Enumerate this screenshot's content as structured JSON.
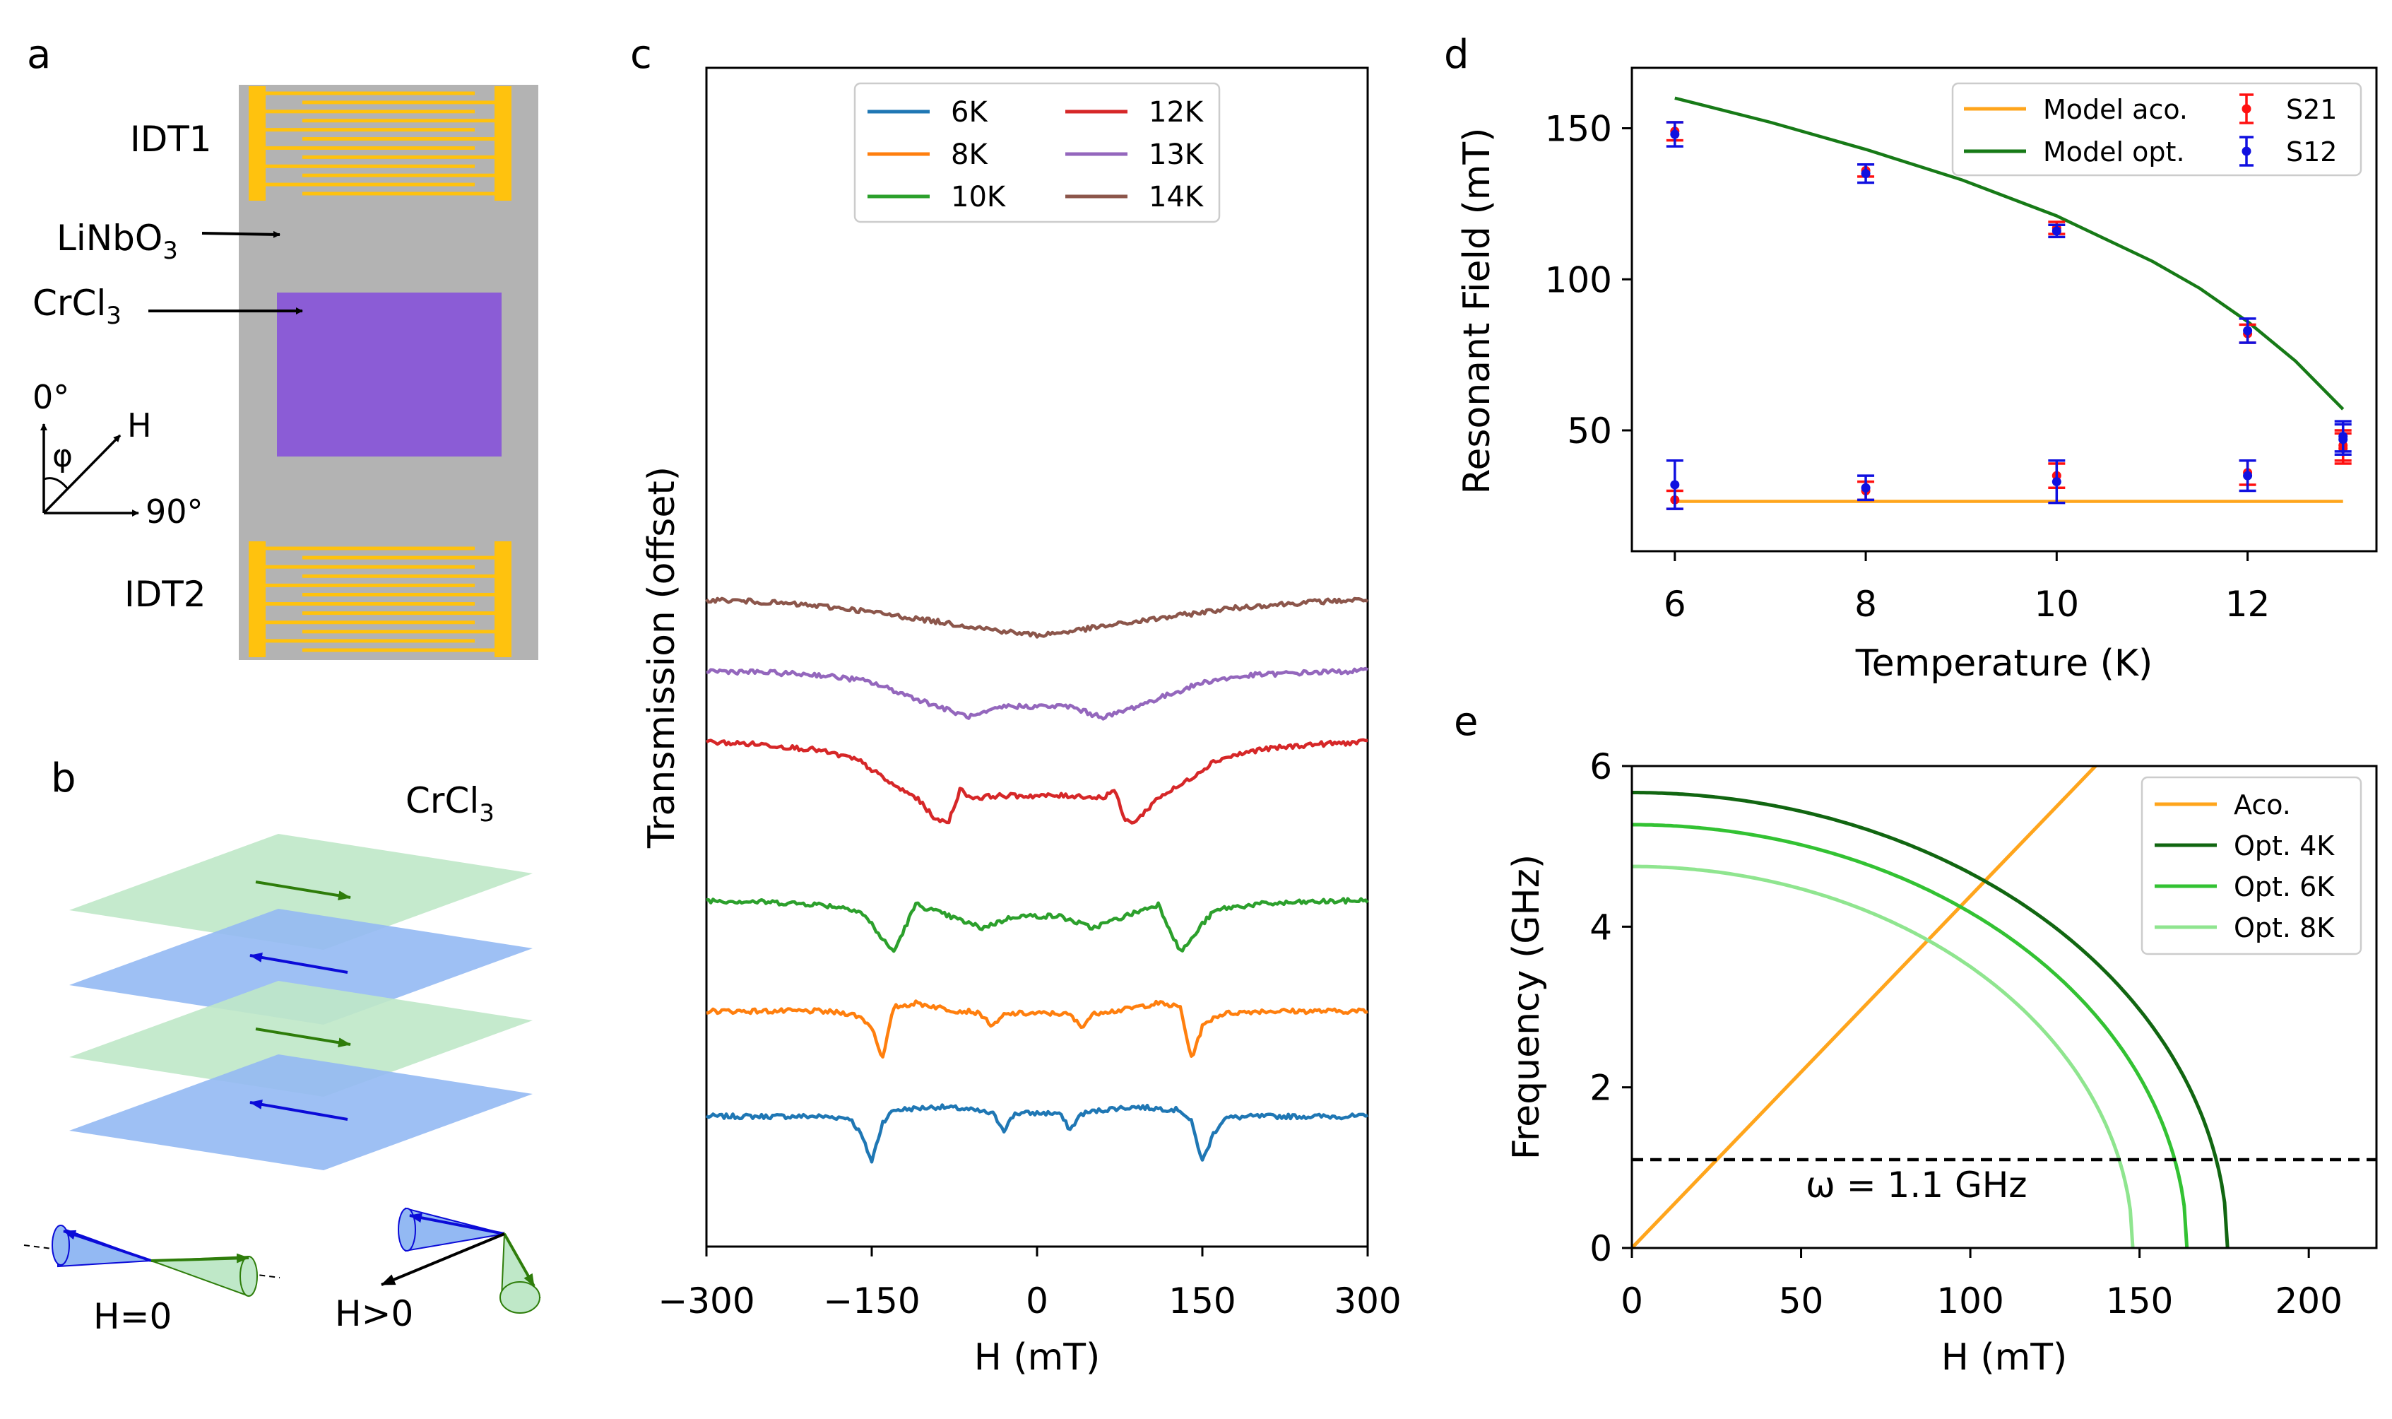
{
  "panel_labels": {
    "a": "a",
    "b": "b",
    "c": "c",
    "d": "d",
    "e": "e"
  },
  "panel_a": {
    "idt1": "IDT1",
    "idt2": "IDT2",
    "linbo3": {
      "main": "LiNbO",
      "sub": "3"
    },
    "crcl3": {
      "main": "CrCl",
      "sub": "3"
    },
    "angle_0": "0°",
    "angle_90": "90°",
    "phi": "φ",
    "field": "H",
    "colors": {
      "substrate": "#b3b3b3",
      "electrode": "#ffc20e",
      "flake": "#8b5cd6"
    }
  },
  "panel_b": {
    "title": {
      "main": "CrCl",
      "sub": "3"
    },
    "h_zero": "H=0",
    "h_pos": "H>0",
    "colors": {
      "green_layer": "#bfe8c8",
      "blue_layer": "#93b9f3",
      "green_arrow": "#2e7d0a",
      "blue_arrow": "#0b0bd8"
    }
  },
  "chart_data": [
    {
      "id": "c",
      "type": "line",
      "title": "",
      "xlabel": "H (mT)",
      "ylabel": "Transmission (offset)",
      "xlim": [
        -300,
        300
      ],
      "xticks": [
        -300,
        -150,
        0,
        150,
        300
      ],
      "xtick_labels": [
        "−300",
        "−150",
        "0",
        "150",
        "300"
      ],
      "yticks": [],
      "grid": false,
      "legend": "top-center, 2 columns",
      "x": [
        -300,
        -250,
        -200,
        -170,
        -160,
        -150,
        -140,
        -130,
        -110,
        -90,
        -80,
        -70,
        -60,
        -50,
        -40,
        -30,
        -20,
        0,
        20,
        30,
        40,
        50,
        60,
        70,
        80,
        90,
        110,
        130,
        140,
        150,
        160,
        170,
        200,
        250,
        300
      ],
      "series": [
        {
          "name": "6K",
          "color": "#1f77b4",
          "offset": 0.0,
          "values": [
            0.02,
            0.02,
            0.02,
            0.0,
            -0.2,
            -0.55,
            -0.05,
            0.1,
            0.12,
            0.14,
            0.13,
            0.12,
            0.1,
            0.08,
            0.05,
            -0.15,
            0.06,
            0.06,
            0.06,
            -0.15,
            0.05,
            0.08,
            0.1,
            0.12,
            0.13,
            0.14,
            0.12,
            0.1,
            -0.05,
            -0.55,
            -0.2,
            0.0,
            0.02,
            0.02,
            0.02
          ]
        },
        {
          "name": "8K",
          "color": "#ff7f0e",
          "offset": 1.35,
          "values": [
            0.0,
            0.0,
            0.0,
            -0.03,
            -0.08,
            -0.2,
            -0.6,
            0.05,
            0.1,
            0.05,
            0.02,
            0.0,
            0.0,
            -0.05,
            -0.2,
            -0.05,
            -0.03,
            -0.03,
            -0.03,
            -0.05,
            -0.2,
            -0.05,
            0.0,
            0.0,
            0.02,
            0.05,
            0.1,
            0.05,
            -0.6,
            -0.2,
            -0.08,
            -0.03,
            0.0,
            0.0,
            0.0
          ]
        },
        {
          "name": "10K",
          "color": "#2ca02c",
          "offset": 2.75,
          "values": [
            0.0,
            -0.02,
            -0.05,
            -0.1,
            -0.15,
            -0.3,
            -0.5,
            -0.65,
            -0.05,
            -0.15,
            -0.2,
            -0.25,
            -0.3,
            -0.35,
            -0.3,
            -0.25,
            -0.2,
            -0.2,
            -0.2,
            -0.25,
            -0.3,
            -0.35,
            -0.3,
            -0.25,
            -0.2,
            -0.15,
            -0.05,
            -0.65,
            -0.5,
            -0.3,
            -0.15,
            -0.1,
            -0.05,
            -0.02,
            0.0
          ]
        },
        {
          "name": "12K",
          "color": "#d62728",
          "offset": 4.75,
          "values": [
            0.0,
            -0.03,
            -0.1,
            -0.2,
            -0.25,
            -0.35,
            -0.45,
            -0.55,
            -0.7,
            -1.0,
            -1.0,
            -0.6,
            -0.7,
            -0.7,
            -0.68,
            -0.68,
            -0.68,
            -0.68,
            -0.68,
            -0.68,
            -0.68,
            -0.7,
            -0.7,
            -0.6,
            -1.0,
            -1.0,
            -0.7,
            -0.55,
            -0.45,
            -0.35,
            -0.25,
            -0.2,
            -0.1,
            -0.03,
            0.0
          ]
        },
        {
          "name": "13K",
          "color": "#9467bd",
          "offset": 5.65,
          "values": [
            0.0,
            -0.02,
            -0.05,
            -0.1,
            -0.12,
            -0.15,
            -0.2,
            -0.25,
            -0.35,
            -0.45,
            -0.5,
            -0.55,
            -0.58,
            -0.55,
            -0.5,
            -0.45,
            -0.45,
            -0.45,
            -0.45,
            -0.45,
            -0.5,
            -0.55,
            -0.58,
            -0.55,
            -0.5,
            -0.45,
            -0.35,
            -0.25,
            -0.2,
            -0.15,
            -0.12,
            -0.1,
            -0.05,
            -0.02,
            0.0
          ]
        },
        {
          "name": "14K",
          "color": "#8c564b",
          "offset": 6.55,
          "values": [
            0.0,
            -0.03,
            -0.08,
            -0.12,
            -0.14,
            -0.16,
            -0.18,
            -0.2,
            -0.24,
            -0.28,
            -0.3,
            -0.32,
            -0.34,
            -0.36,
            -0.38,
            -0.4,
            -0.42,
            -0.45,
            -0.42,
            -0.4,
            -0.38,
            -0.36,
            -0.34,
            -0.32,
            -0.3,
            -0.28,
            -0.24,
            -0.2,
            -0.18,
            -0.16,
            -0.14,
            -0.12,
            -0.08,
            -0.03,
            0.0
          ]
        }
      ]
    },
    {
      "id": "d",
      "type": "scatter",
      "title": "",
      "xlabel": "Temperature (K)",
      "ylabel": "Resonant Field (mT)",
      "xlim": [
        5.55,
        13.35
      ],
      "ylim": [
        10,
        170
      ],
      "xticks": [
        6,
        8,
        10,
        12
      ],
      "yticks": [
        50,
        100,
        150
      ],
      "grid": false,
      "legend": "top-right, 2 columns",
      "lines": [
        {
          "name": "Model aco.",
          "color": "#ffa51c",
          "x": [
            6,
            13
          ],
          "y": [
            26.5,
            26.5
          ]
        },
        {
          "name": "Model opt.",
          "color": "#177a17",
          "x": [
            6,
            7,
            8,
            9,
            10,
            11,
            11.5,
            12,
            12.5,
            13
          ],
          "y": [
            160,
            152,
            143,
            133,
            121,
            106,
            97,
            86,
            73,
            57
          ]
        }
      ],
      "series": [
        {
          "name": "S21",
          "color": "#ff1010",
          "x": [
            6,
            8,
            10,
            12,
            13,
            6,
            8,
            10,
            12,
            13
          ],
          "y": [
            149,
            136,
            117,
            82,
            44,
            27,
            30,
            35,
            36,
            45
          ],
          "yerr": [
            3,
            2,
            2,
            3,
            5,
            3,
            3,
            4,
            4,
            5
          ]
        },
        {
          "name": "S12",
          "color": "#1010e0",
          "x": [
            6,
            8,
            10,
            12,
            13,
            6,
            8,
            10,
            12,
            13
          ],
          "y": [
            148,
            135,
            116,
            83,
            48,
            32,
            31,
            33,
            35,
            47
          ],
          "yerr": [
            4,
            3,
            2,
            4,
            5,
            8,
            4,
            7,
            5,
            5
          ]
        }
      ]
    },
    {
      "id": "e",
      "type": "line",
      "title": "",
      "xlabel": "H (mT)",
      "ylabel": "Frequency (GHz)",
      "xlim": [
        0,
        220
      ],
      "ylim": [
        0,
        6
      ],
      "xticks": [
        0,
        50,
        100,
        150,
        200
      ],
      "yticks": [
        0,
        2,
        4,
        6
      ],
      "grid": false,
      "legend": "top-right",
      "series": [
        {
          "name": "Aco.",
          "color": "#ffa51c",
          "kind": "linear",
          "slope": 0.0438
        },
        {
          "name": "Opt. 4K",
          "color": "#116611",
          "kind": "ellipse",
          "f0": 5.67,
          "hc": 176
        },
        {
          "name": "Opt. 6K",
          "color": "#33c233",
          "kind": "ellipse",
          "f0": 5.27,
          "hc": 164
        },
        {
          "name": "Opt. 8K",
          "color": "#8fe58f",
          "kind": "ellipse",
          "f0": 4.75,
          "hc": 148
        }
      ],
      "annotation": {
        "text": "ω = 1.1 GHz",
        "y": 1.1
      }
    }
  ]
}
